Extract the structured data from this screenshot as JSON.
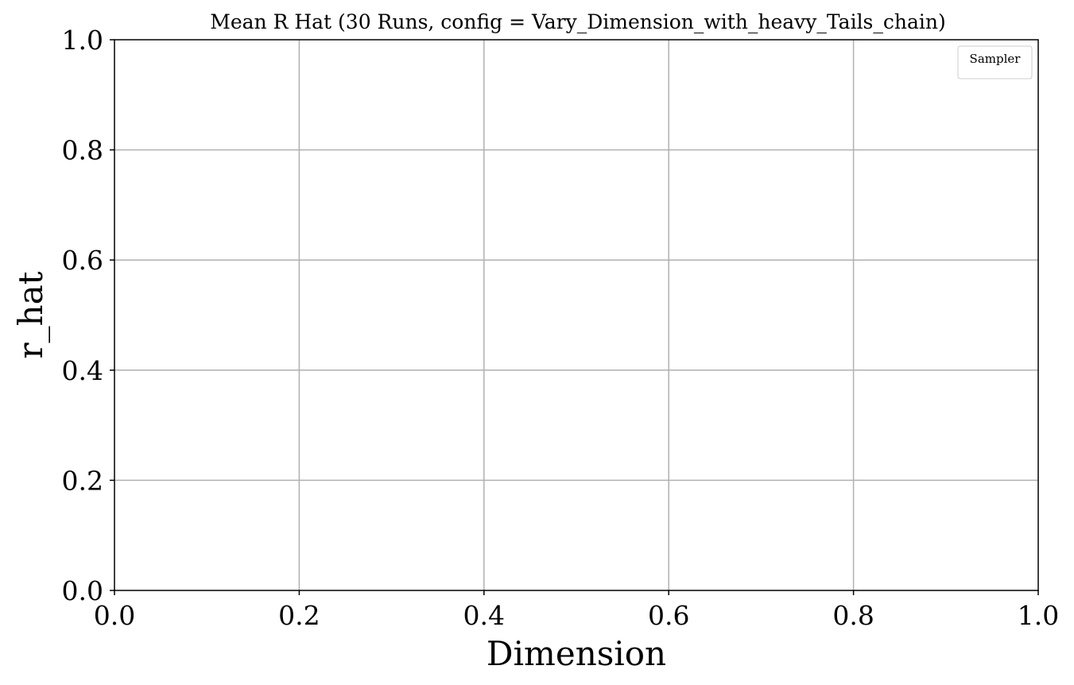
{
  "chart_data": {
    "type": "line",
    "title": "Mean R Hat (30 Runs, config = Vary_Dimension_with_heavy_Tails_chain)",
    "xlabel": "Dimension",
    "ylabel": "r_hat",
    "xlim": [
      0.0,
      1.0
    ],
    "ylim": [
      0.0,
      1.0
    ],
    "x_ticks": [
      "0.0",
      "0.2",
      "0.4",
      "0.6",
      "0.8",
      "1.0"
    ],
    "y_ticks": [
      "0.0",
      "0.2",
      "0.4",
      "0.6",
      "0.8",
      "1.0"
    ],
    "grid": true,
    "legend": {
      "title": "Sampler",
      "placement": "top-right",
      "entries": []
    },
    "series": []
  },
  "colors": {
    "background": "#ffffff",
    "axes": "#000000",
    "grid": "#b0b0b0",
    "legend_border": "#cccccc"
  }
}
